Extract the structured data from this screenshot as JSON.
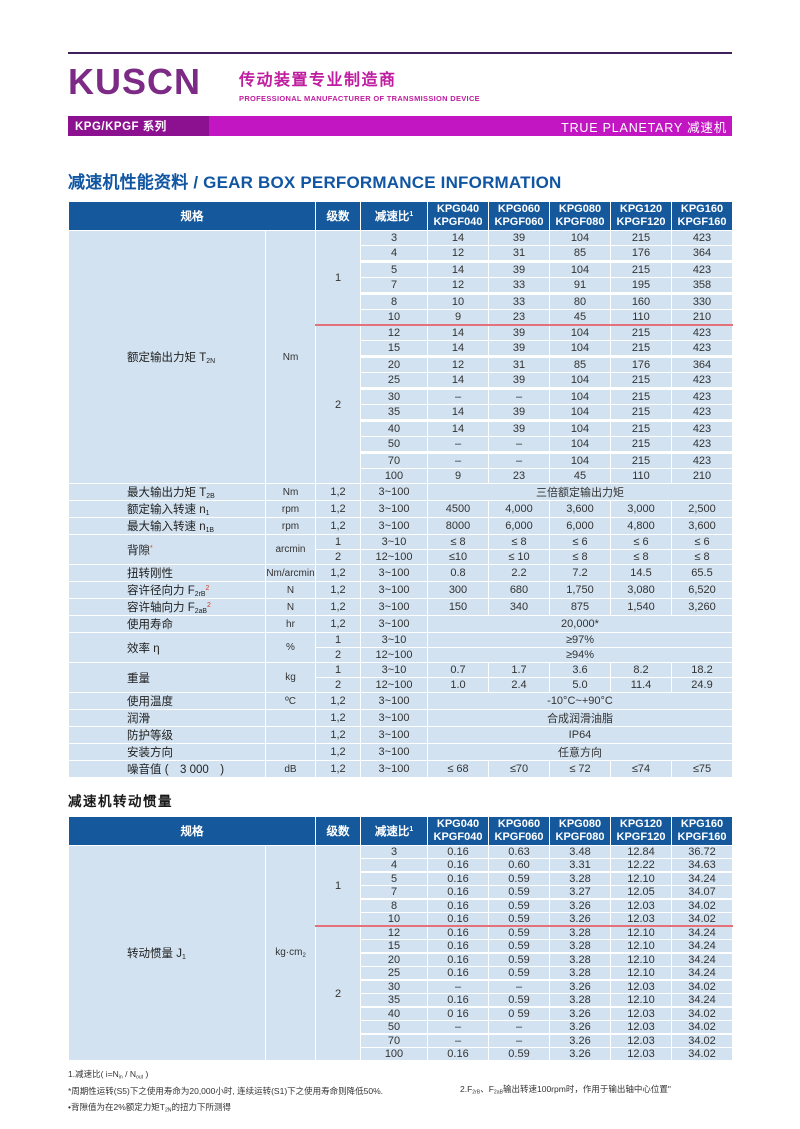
{
  "header": {
    "logo": "KUSCN",
    "tagline_zh": "传动装置专业制造商",
    "tagline_en": "PROFESSIONAL MANUFACTURER OF TRANSMISSION DEVICE",
    "series_left": "KPG/KPGF 系列",
    "series_right": "TRUE PLANETARY 减速机"
  },
  "colors": {
    "logo_purple": "#7c2a85",
    "tagline_magenta": "#bf1d9f",
    "bar_left_purple": "#8c1190",
    "bar_right_magenta": "#c316c3",
    "table_header_blue": "#15599c",
    "cell_blue": "#d2e2f0",
    "title_blue": "#1156a2",
    "red_line": "#e4717a",
    "red_mark": "#cc4125"
  },
  "section_performance": {
    "title": "减速机性能资料 / GEAR BOX PERFORMANCE INFORMATION"
  },
  "section_inertia": {
    "title": "减速机转动惯量"
  },
  "table_header": {
    "spec": "规格",
    "stages": "级数",
    "ratio": [
      {
        "t": "减速比"
      },
      {
        "p": "1"
      }
    ],
    "models": [
      {
        "line1": "KPG040",
        "line2": "KPGF040"
      },
      {
        "line1": "KPG060",
        "line2": "KPGF060"
      },
      {
        "line1": "KPG080",
        "line2": "KPGF080"
      },
      {
        "line1": "KPG120",
        "line2": "KPGF120"
      },
      {
        "line1": "KPG160",
        "line2": "KPGF160"
      }
    ]
  },
  "perf_table": {
    "groups": [
      {
        "spec": [
          {
            "t": "额定输出力矩 T"
          },
          {
            "s": "2N"
          }
        ],
        "unit": [
          {
            "t": "Nm"
          }
        ],
        "blocks": [
          {
            "stage": "1",
            "rows": [
              {
                "ratio": "3",
                "v": [
                  "14",
                  "39",
                  "104",
                  "215",
                  "423"
                ]
              },
              {
                "ratio": "4",
                "v": [
                  "12",
                  "31",
                  "85",
                  "176",
                  "364"
                ]
              },
              {
                "ratio": "5",
                "v": [
                  "14",
                  "39",
                  "104",
                  "215",
                  "423"
                ]
              },
              {
                "ratio": "7",
                "v": [
                  "12",
                  "33",
                  "91",
                  "195",
                  "358"
                ]
              },
              {
                "ratio": "8",
                "v": [
                  "10",
                  "33",
                  "80",
                  "160",
                  "330"
                ]
              },
              {
                "ratio": "10",
                "v": [
                  "9",
                  "23",
                  "45",
                  "110",
                  "210"
                ]
              }
            ]
          },
          {
            "stage": "2",
            "red": true,
            "rows": [
              {
                "ratio": "12",
                "v": [
                  "14",
                  "39",
                  "104",
                  "215",
                  "423"
                ]
              },
              {
                "ratio": "15",
                "v": [
                  "14",
                  "39",
                  "104",
                  "215",
                  "423"
                ]
              },
              {
                "ratio": "20",
                "v": [
                  "12",
                  "31",
                  "85",
                  "176",
                  "364"
                ]
              },
              {
                "ratio": "25",
                "v": [
                  "14",
                  "39",
                  "104",
                  "215",
                  "423"
                ]
              },
              {
                "ratio": "30",
                "v": [
                  "–",
                  "–",
                  "104",
                  "215",
                  "423"
                ]
              },
              {
                "ratio": "35",
                "v": [
                  "14",
                  "39",
                  "104",
                  "215",
                  "423"
                ]
              },
              {
                "ratio": "40",
                "v": [
                  "14",
                  "39",
                  "104",
                  "215",
                  "423"
                ]
              },
              {
                "ratio": "50",
                "v": [
                  "–",
                  "–",
                  "104",
                  "215",
                  "423"
                ]
              },
              {
                "ratio": "70",
                "v": [
                  "–",
                  "–",
                  "104",
                  "215",
                  "423"
                ]
              },
              {
                "ratio": "100",
                "v": [
                  "9",
                  "23",
                  "45",
                  "110",
                  "210"
                ]
              }
            ]
          }
        ]
      },
      {
        "spec": [
          {
            "t": "最大输出力矩 T"
          },
          {
            "s": "2B"
          }
        ],
        "unit": [
          {
            "t": "Nm"
          }
        ],
        "blocks": [
          {
            "stage": "1,2",
            "rows": [
              {
                "ratio": "3~100",
                "span": "三倍额定输出力矩"
              }
            ]
          }
        ]
      },
      {
        "spec": [
          {
            "t": "额定输入转速 n"
          },
          {
            "s": "1"
          }
        ],
        "unit": [
          {
            "t": "rpm"
          }
        ],
        "blocks": [
          {
            "stage": "1,2",
            "rows": [
              {
                "ratio": "3~100",
                "v": [
                  "4500",
                  "4,000",
                  "3,600",
                  "3,000",
                  "2,500"
                ]
              }
            ]
          }
        ]
      },
      {
        "spec": [
          {
            "t": "最大输入转速 n"
          },
          {
            "s": "1B"
          }
        ],
        "unit": [
          {
            "t": "rpm"
          }
        ],
        "blocks": [
          {
            "stage": "1,2",
            "rows": [
              {
                "ratio": "3~100",
                "v": [
                  "8000",
                  "6,000",
                  "6,000",
                  "4,800",
                  "3,600"
                ]
              }
            ]
          }
        ]
      },
      {
        "spec": [
          {
            "t": "背隙"
          },
          {
            "p": "*",
            "r": 1
          }
        ],
        "unit": [
          {
            "t": "arcmin"
          }
        ],
        "blocks": [
          {
            "stage": "1",
            "rows": [
              {
                "ratio": "3~10",
                "v": [
                  "≤ 8",
                  "≤ 8",
                  "≤ 6",
                  "≤ 6",
                  "≤ 6"
                ]
              }
            ]
          },
          {
            "stage": "2",
            "rows": [
              {
                "ratio": "12~100",
                "v": [
                  "≤10",
                  "≤ 10",
                  "≤ 8",
                  "≤ 8",
                  "≤ 8"
                ]
              }
            ]
          }
        ]
      },
      {
        "spec": [
          {
            "t": "扭转刚性"
          }
        ],
        "unit": [
          {
            "t": "Nm/arcmin"
          }
        ],
        "blocks": [
          {
            "stage": "1,2",
            "rows": [
              {
                "ratio": "3~100",
                "v": [
                  "0.8",
                  "2.2",
                  "7.2",
                  "14.5",
                  "65.5"
                ]
              }
            ]
          }
        ]
      },
      {
        "spec": [
          {
            "t": "容许径向力 F"
          },
          {
            "s": "2rB"
          },
          {
            "p": "2",
            "r": 1
          }
        ],
        "unit": [
          {
            "t": "N"
          }
        ],
        "blocks": [
          {
            "stage": "1,2",
            "rows": [
              {
                "ratio": "3~100",
                "v": [
                  "300",
                  "680",
                  "1,750",
                  "3,080",
                  "6,520"
                ]
              }
            ]
          }
        ]
      },
      {
        "spec": [
          {
            "t": "容许轴向力 F"
          },
          {
            "s": "2aB"
          },
          {
            "p": "2",
            "r": 1
          }
        ],
        "unit": [
          {
            "t": "N"
          }
        ],
        "blocks": [
          {
            "stage": "1,2",
            "rows": [
              {
                "ratio": "3~100",
                "v": [
                  "150",
                  "340",
                  "875",
                  "1,540",
                  "3,260"
                ]
              }
            ]
          }
        ]
      },
      {
        "spec": [
          {
            "t": "使用寿命"
          }
        ],
        "unit": [
          {
            "t": "hr"
          }
        ],
        "blocks": [
          {
            "stage": "1,2",
            "rows": [
              {
                "ratio": "3~100",
                "span": "20,000*"
              }
            ]
          }
        ]
      },
      {
        "spec": [
          {
            "t": "效率 η"
          }
        ],
        "unit": [
          {
            "t": "%"
          }
        ],
        "blocks": [
          {
            "stage": "1",
            "rows": [
              {
                "ratio": "3~10",
                "span": "≥97%"
              }
            ]
          },
          {
            "stage": "2",
            "rows": [
              {
                "ratio": "12~100",
                "span": "≥94%"
              }
            ]
          }
        ]
      },
      {
        "spec": [
          {
            "t": "重量"
          }
        ],
        "unit": [
          {
            "t": "kg"
          }
        ],
        "blocks": [
          {
            "stage": "1",
            "rows": [
              {
                "ratio": "3~10",
                "v": [
                  "0.7",
                  "1.7",
                  "3.6",
                  "8.2",
                  "18.2"
                ]
              }
            ]
          },
          {
            "stage": "2",
            "rows": [
              {
                "ratio": "12~100",
                "v": [
                  "1.0",
                  "2.4",
                  "5.0",
                  "11.4",
                  "24.9"
                ]
              }
            ]
          }
        ]
      },
      {
        "spec": [
          {
            "t": "使用温度"
          }
        ],
        "unit": [
          {
            "t": "ºC"
          }
        ],
        "blocks": [
          {
            "stage": "1,2",
            "rows": [
              {
                "ratio": "3~100",
                "span": "-10°C~+90°C"
              }
            ]
          }
        ]
      },
      {
        "spec": [
          {
            "t": "润滑"
          }
        ],
        "unit": [],
        "blocks": [
          {
            "stage": "1,2",
            "rows": [
              {
                "ratio": "3~100",
                "span": "合成润滑油脂"
              }
            ]
          }
        ]
      },
      {
        "spec": [
          {
            "t": "防护等级"
          }
        ],
        "unit": [],
        "blocks": [
          {
            "stage": "1,2",
            "rows": [
              {
                "ratio": "3~100",
                "span": "IP64"
              }
            ]
          }
        ]
      },
      {
        "spec": [
          {
            "t": "安装方向"
          }
        ],
        "unit": [],
        "blocks": [
          {
            "stage": "1,2",
            "rows": [
              {
                "ratio": "3~100",
                "span": "任意方向"
              }
            ]
          }
        ]
      },
      {
        "spec": [
          {
            "t": "噪音值 (　3 000　)"
          }
        ],
        "unit": [
          {
            "t": "dB"
          }
        ],
        "blocks": [
          {
            "stage": "1,2",
            "rows": [
              {
                "ratio": "3~100",
                "v": [
                  "≤ 68",
                  "≤70",
                  "≤ 72",
                  "≤74",
                  "≤75"
                ]
              }
            ]
          }
        ]
      }
    ]
  },
  "inertia_table": {
    "groups": [
      {
        "spec": [
          {
            "t": "转动惯量 J"
          },
          {
            "s": "1"
          }
        ],
        "unit": [
          {
            "t": "kg·cm"
          },
          {
            "s": "2"
          }
        ],
        "blocks": [
          {
            "stage": "1",
            "rows": [
              {
                "ratio": "3",
                "v": [
                  "0.16",
                  "0.63",
                  "3.48",
                  "12.84",
                  "36.72"
                ]
              },
              {
                "ratio": "4",
                "v": [
                  "0.16",
                  "0.60",
                  "3.31",
                  "12.22",
                  "34.63"
                ]
              },
              {
                "ratio": "5",
                "v": [
                  "0.16",
                  "0.59",
                  "3.28",
                  "12.10",
                  "34.24"
                ]
              },
              {
                "ratio": "7",
                "v": [
                  "0.16",
                  "0.59",
                  "3.27",
                  "12.05",
                  "34.07"
                ]
              },
              {
                "ratio": "8",
                "v": [
                  "0.16",
                  "0.59",
                  "3.26",
                  "12.03",
                  "34.02"
                ]
              },
              {
                "ratio": "10",
                "v": [
                  "0.16",
                  "0.59",
                  "3.26",
                  "12.03",
                  "34.02"
                ]
              }
            ]
          },
          {
            "stage": "2",
            "red": true,
            "rows": [
              {
                "ratio": "12",
                "v": [
                  "0.16",
                  "0.59",
                  "3.28",
                  "12.10",
                  "34.24"
                ]
              },
              {
                "ratio": "15",
                "v": [
                  "0.16",
                  "0.59",
                  "3.28",
                  "12.10",
                  "34.24"
                ]
              },
              {
                "ratio": "20",
                "v": [
                  "0.16",
                  "0.59",
                  "3.28",
                  "12.10",
                  "34.24"
                ]
              },
              {
                "ratio": "25",
                "v": [
                  "0.16",
                  "0.59",
                  "3.28",
                  "12.10",
                  "34.24"
                ]
              },
              {
                "ratio": "30",
                "v": [
                  "–",
                  "–",
                  "3.26",
                  "12.03",
                  "34.02"
                ]
              },
              {
                "ratio": "35",
                "v": [
                  "0.16",
                  "0.59",
                  "3.28",
                  "12.10",
                  "34.24"
                ]
              },
              {
                "ratio": "40",
                "v": [
                  "0 16",
                  "0 59",
                  "3.26",
                  "12.03",
                  "34.02"
                ]
              },
              {
                "ratio": "50",
                "v": [
                  "–",
                  "–",
                  "3.26",
                  "12.03",
                  "34.02"
                ]
              },
              {
                "ratio": "70",
                "v": [
                  "–",
                  "–",
                  "3.26",
                  "12.03",
                  "34.02"
                ]
              },
              {
                "ratio": "100",
                "v": [
                  "0.16",
                  "0.59",
                  "3.26",
                  "12.03",
                  "34.02"
                ]
              }
            ]
          }
        ]
      }
    ]
  },
  "footnotes": {
    "left": [
      [
        {
          "t": "1.减速比( i=N"
        },
        {
          "s": "in"
        },
        {
          "t": " / N"
        },
        {
          "s": "out"
        },
        {
          "t": " )"
        }
      ],
      [
        {
          "t": "*周期性运转(S5)下之使用寿命为20,000小时, 连续运转(S1)下之使用寿命则降低50%."
        }
      ],
      [
        {
          "t": "•背隙值为在2%额定力矩T"
        },
        {
          "s": "2N"
        },
        {
          "t": "的扭力下所测得"
        }
      ]
    ],
    "right": [
      [
        {
          "t": "2.F"
        },
        {
          "s": "2rB"
        },
        {
          "t": "、F"
        },
        {
          "s": "2aB"
        },
        {
          "t": "输出转速100rpm时，作用于输出轴中心位置\""
        }
      ]
    ]
  }
}
